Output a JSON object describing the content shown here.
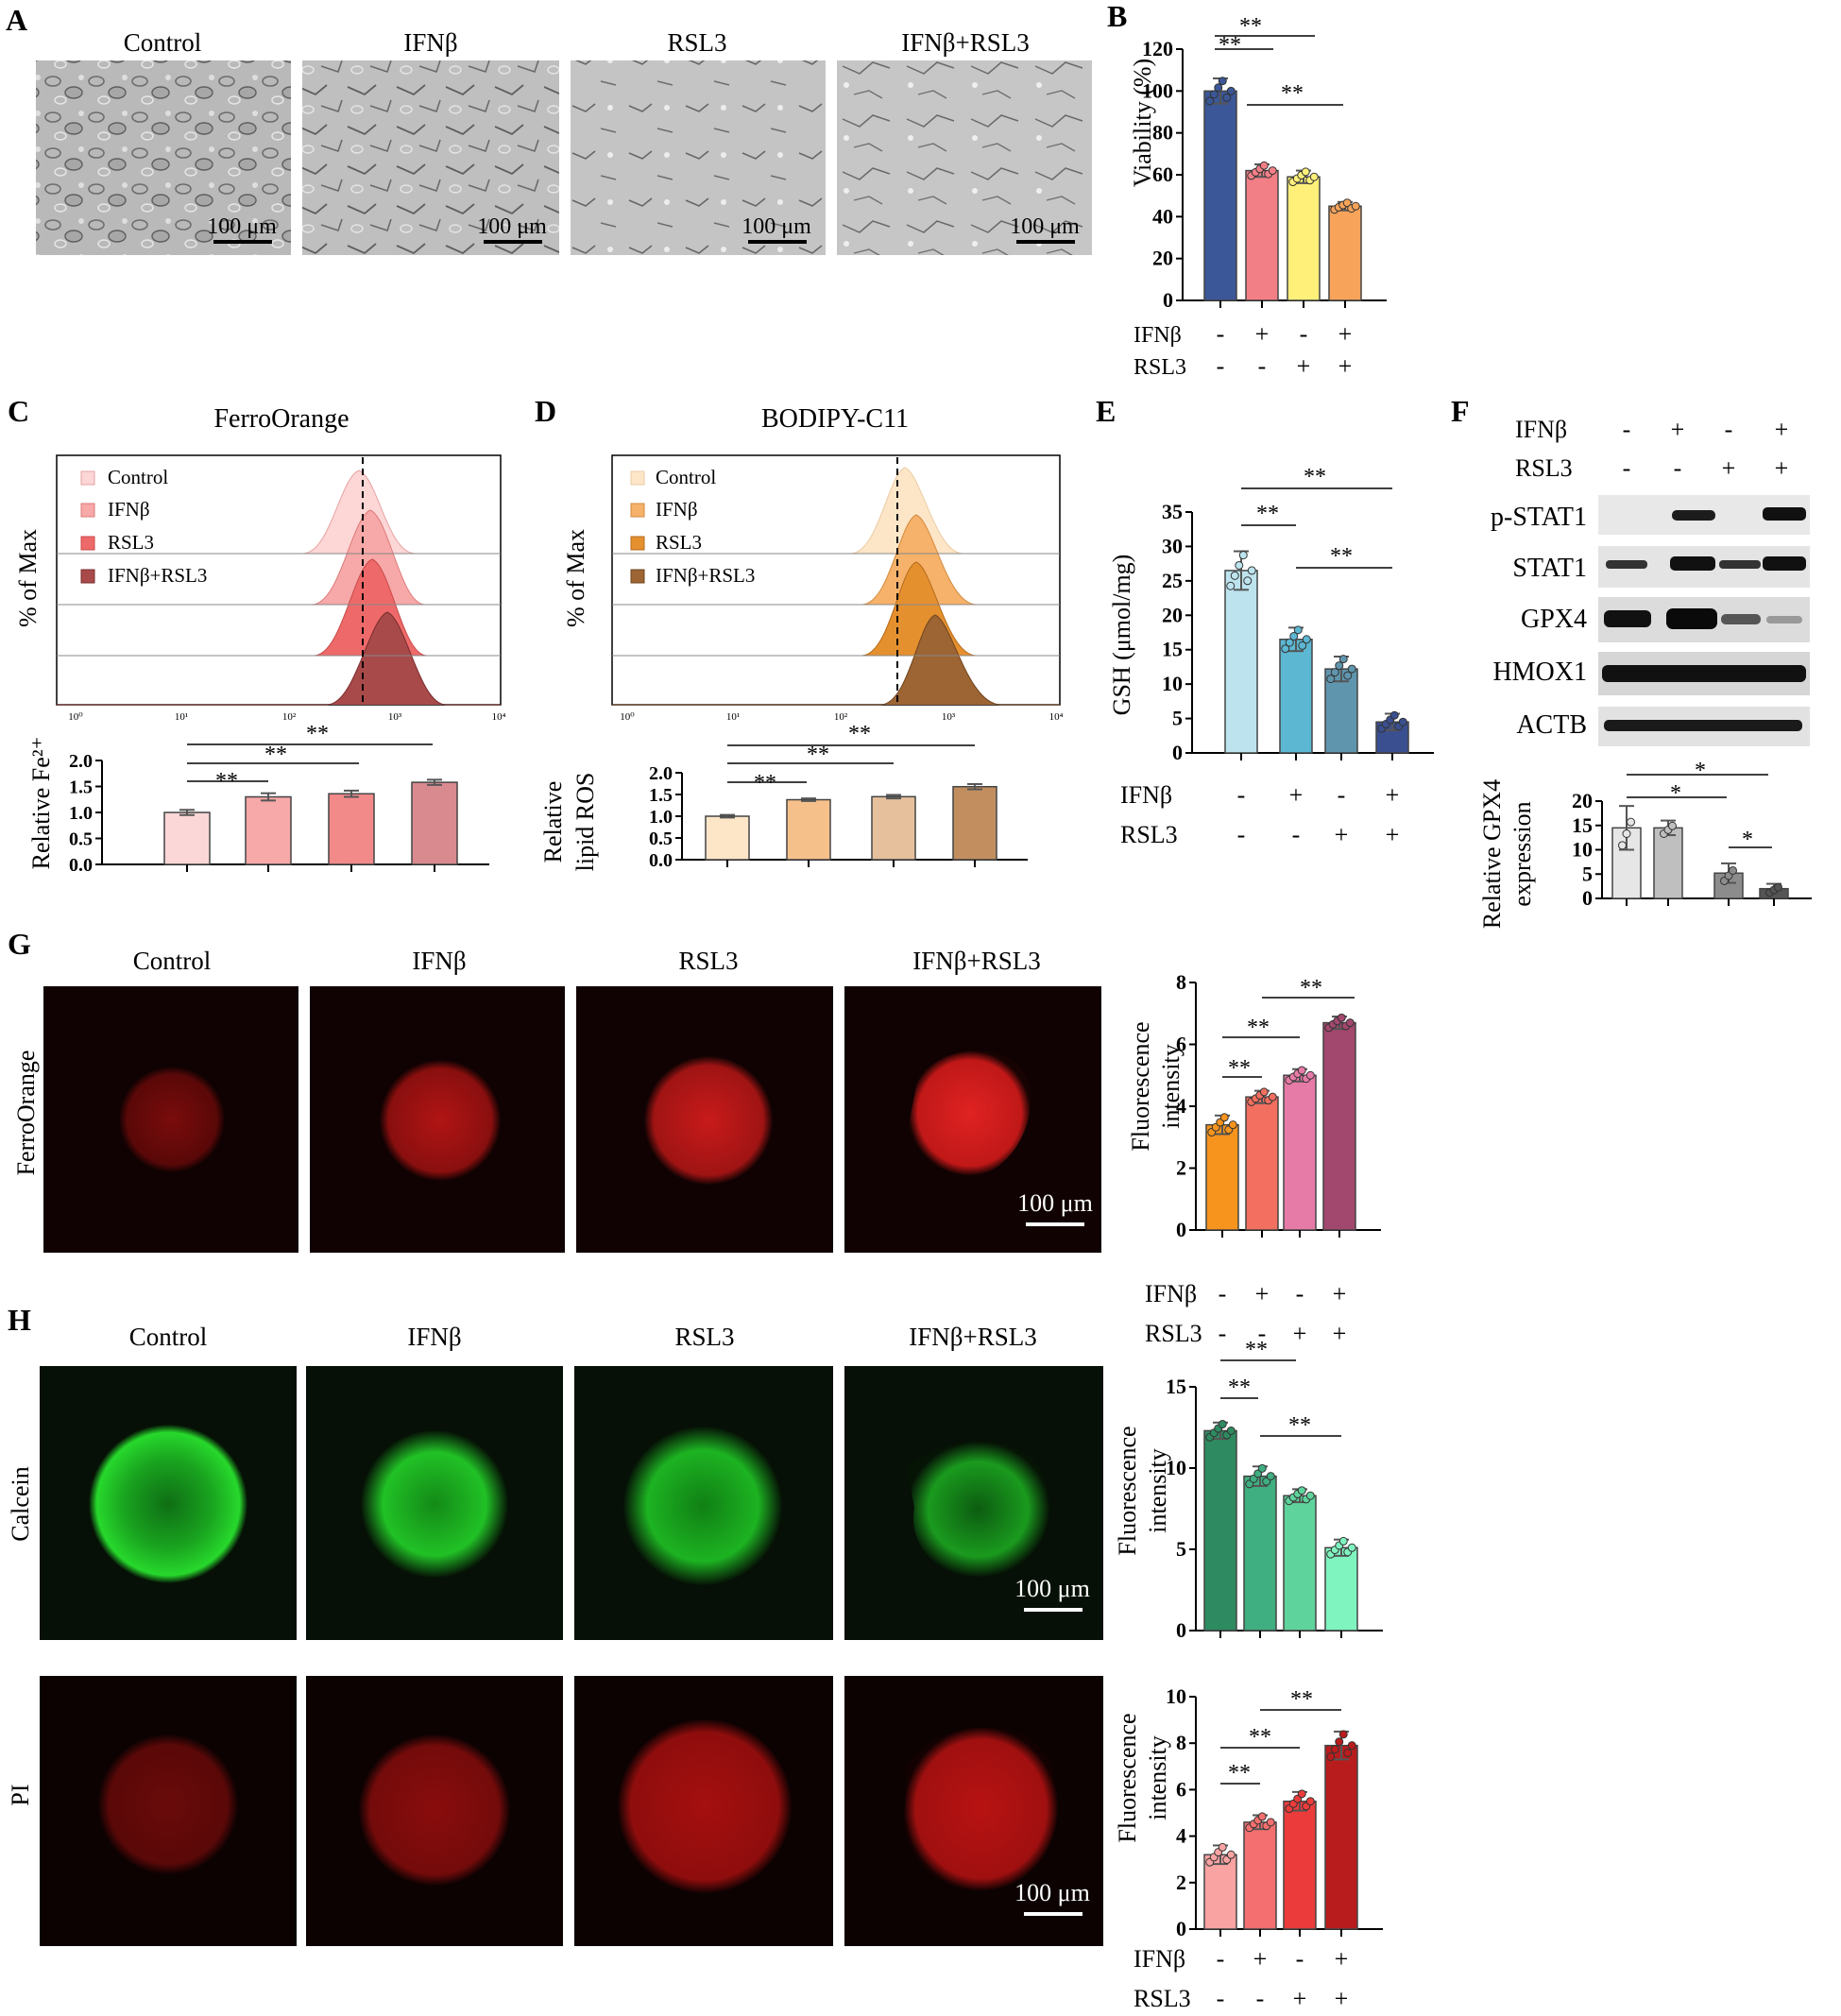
{
  "groups": [
    "Control",
    "IFNβ",
    "RSL3",
    "IFNβ+RSL3"
  ],
  "scale_bar": "100 μm",
  "sig2": "**",
  "sig1": "*",
  "plus": "+",
  "minus": "-",
  "treat_rows": {
    "ifnb": "IFNβ",
    "rsl3": "RSL3"
  },
  "treat_matrix": {
    "ifnb": [
      "-",
      "+",
      "-",
      "+"
    ],
    "rsl3": [
      "-",
      "-",
      "+",
      "+"
    ]
  },
  "panels": {
    "A": {
      "letter": "A"
    },
    "B": {
      "letter": "B",
      "ylabel": "Viability (%)"
    },
    "C": {
      "letter": "C",
      "title": "FerroOrange",
      "ylabel": "% of Max",
      "bar_ylabel": "Relative Fe²⁺",
      "legend": [
        "Control",
        "IFNβ",
        "RSL3",
        "IFNβ+RSL3"
      ],
      "xticks": [
        "10⁰",
        "10¹",
        "10²",
        "10³",
        "10⁴"
      ]
    },
    "D": {
      "letter": "D",
      "title": "BODIPY-C11",
      "ylabel": "% of Max",
      "bar_ylabel_1": "Relative",
      "bar_ylabel_2": "lipid ROS",
      "legend": [
        "Control",
        "IFNβ",
        "RSL3",
        "IFNβ+RSL3"
      ],
      "xticks": [
        "10⁰",
        "10¹",
        "10²",
        "10³",
        "10⁴"
      ]
    },
    "E": {
      "letter": "E",
      "ylabel": "GSH (μmol/mg)"
    },
    "F": {
      "letter": "F",
      "blots": [
        "p-STAT1",
        "STAT1",
        "GPX4",
        "HMOX1",
        "ACTB"
      ],
      "bar_ylabel_1": "Relative GPX4",
      "bar_ylabel_2": "expression"
    },
    "G": {
      "letter": "G",
      "row_label": "FerroOrange",
      "ylabel_1": "Fluorescence",
      "ylabel_2": "intensity"
    },
    "H": {
      "letter": "H",
      "row_label_1": "Calcein",
      "row_label_2": "PI",
      "ylabel_1": "Fluorescence",
      "ylabel_2": "intensity"
    }
  },
  "chart_data": [
    {
      "id": "B",
      "type": "bar",
      "categories": [
        "Control",
        "IFNβ",
        "RSL3",
        "IFNβ+RSL3"
      ],
      "values": [
        100,
        62,
        59,
        45
      ],
      "errors": [
        6,
        3,
        3,
        2
      ],
      "ylim": [
        0,
        120
      ],
      "yticks": [
        0,
        20,
        40,
        60,
        80,
        100,
        120
      ],
      "ylabel": "Viability (%)",
      "colors": [
        "#3b5797",
        "#f37f86",
        "#fff07a",
        "#f7a45a"
      ]
    },
    {
      "id": "C",
      "type": "bar",
      "categories": [
        "Control",
        "IFNβ",
        "RSL3",
        "IFNβ+RSL3"
      ],
      "values": [
        1.0,
        1.3,
        1.36,
        1.58
      ],
      "errors": [
        0.05,
        0.07,
        0.06,
        0.05
      ],
      "ylim": [
        0,
        2.0
      ],
      "yticks": [
        0.0,
        0.5,
        1.0,
        1.5,
        2.0
      ],
      "ylabel": "Relative Fe²⁺",
      "colors": [
        "#fcd7d7",
        "#f7a8a8",
        "#f38a8a",
        "#d98a8f"
      ]
    },
    {
      "id": "D",
      "type": "bar",
      "categories": [
        "Control",
        "IFNβ",
        "RSL3",
        "IFNβ+RSL3"
      ],
      "values": [
        1.0,
        1.38,
        1.45,
        1.68
      ],
      "errors": [
        0.03,
        0.03,
        0.04,
        0.06
      ],
      "ylim": [
        0,
        2.0
      ],
      "yticks": [
        0.0,
        0.5,
        1.0,
        1.5,
        2.0
      ],
      "ylabel": "Relative lipid ROS",
      "colors": [
        "#fde6c8",
        "#f6c08a",
        "#e6c09c",
        "#c28e60"
      ]
    },
    {
      "id": "E",
      "type": "bar",
      "categories": [
        "Control",
        "IFNβ",
        "RSL3",
        "IFNβ+RSL3"
      ],
      "values": [
        26.5,
        16.5,
        12.2,
        4.5
      ],
      "errors": [
        2.8,
        1.7,
        1.8,
        1.2
      ],
      "ylim": [
        0,
        35
      ],
      "yticks": [
        0,
        5,
        10,
        15,
        20,
        25,
        30,
        35
      ],
      "ylabel": "GSH (μmol/mg)",
      "colors": [
        "#bde4ee",
        "#5cb7d2",
        "#5f95ad",
        "#3a4f8f"
      ]
    },
    {
      "id": "F",
      "type": "bar",
      "categories": [
        "Control",
        "IFNβ",
        "RSL3",
        "IFNβ+RSL3"
      ],
      "values": [
        14.5,
        14.5,
        5.2,
        2.0
      ],
      "errors": [
        4.5,
        1.5,
        2.0,
        1.0
      ],
      "ylim": [
        0,
        20
      ],
      "yticks": [
        0,
        5,
        10,
        15,
        20
      ],
      "ylabel": "Relative GPX4 expression",
      "colors": [
        "#e6e6e6",
        "#bfbfbf",
        "#8c8c8c",
        "#555555"
      ]
    },
    {
      "id": "G",
      "type": "bar",
      "categories": [
        "Control",
        "IFNβ",
        "RSL3",
        "IFNβ+RSL3"
      ],
      "values": [
        3.4,
        4.3,
        5.0,
        6.7
      ],
      "errors": [
        0.3,
        0.2,
        0.2,
        0.2
      ],
      "ylim": [
        0,
        8
      ],
      "yticks": [
        0,
        2,
        4,
        6,
        8
      ],
      "ylabel": "Fluorescence intensity",
      "colors": [
        "#f7941d",
        "#f36f5f",
        "#e77ba7",
        "#a2476e"
      ]
    },
    {
      "id": "H1",
      "type": "bar",
      "categories": [
        "Control",
        "IFNβ",
        "RSL3",
        "IFNβ+RSL3"
      ],
      "values": [
        12.3,
        9.5,
        8.3,
        5.1
      ],
      "errors": [
        0.5,
        0.6,
        0.4,
        0.5
      ],
      "ylim": [
        0,
        15
      ],
      "yticks": [
        0,
        5,
        10,
        15
      ],
      "ylabel": "Fluorescence intensity",
      "colors": [
        "#2e8b61",
        "#3fae80",
        "#5fd39c",
        "#7ff4bf"
      ]
    },
    {
      "id": "H2",
      "type": "bar",
      "categories": [
        "Control",
        "IFNβ",
        "RSL3",
        "IFNβ+RSL3"
      ],
      "values": [
        3.2,
        4.6,
        5.5,
        7.9
      ],
      "errors": [
        0.4,
        0.3,
        0.4,
        0.6
      ],
      "ylim": [
        0,
        10
      ],
      "yticks": [
        0,
        2,
        4,
        6,
        8,
        10
      ],
      "ylabel": "Fluorescence intensity",
      "colors": [
        "#f9a3a3",
        "#f46f6f",
        "#ec3b3b",
        "#b91c1c"
      ]
    }
  ]
}
